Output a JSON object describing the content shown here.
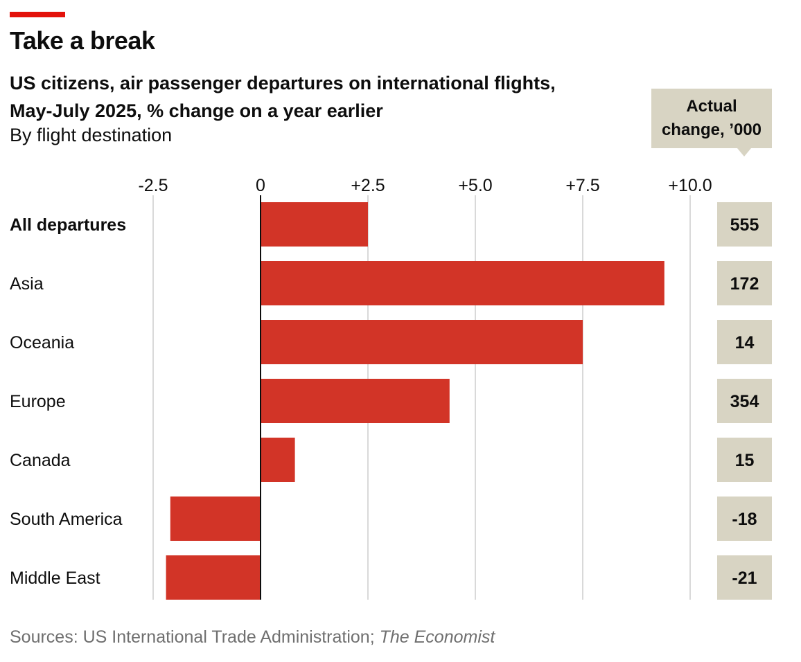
{
  "header": {
    "title": "Take a break",
    "subtitle_line1": "US citizens, air passenger departures on international flights,",
    "subtitle_line2": "May-July 2025, % change on a year earlier",
    "subtitle_note": "By flight destination"
  },
  "callout": {
    "line1": "Actual",
    "line2": "change, ’000"
  },
  "footer": {
    "source_prefix": "Sources: US International Trade Administration; ",
    "source_italic": "The Economist"
  },
  "colors": {
    "bar": "#d23427",
    "accent": "#e3120b",
    "panel": "#d8d4c3",
    "grid": "#d9d9d9"
  },
  "chart_data": {
    "type": "bar",
    "orientation": "horizontal",
    "xlabel": "% change on a year earlier",
    "xlim": [
      -2.5,
      10.0
    ],
    "xticks": [
      -2.5,
      0,
      2.5,
      5.0,
      7.5,
      10.0
    ],
    "xtick_labels": [
      "-2.5",
      "0",
      "+2.5",
      "+5.0",
      "+7.5",
      "+10.0"
    ],
    "categories": [
      "All departures",
      "Asia",
      "Oceania",
      "Europe",
      "Canada",
      "South America",
      "Middle East"
    ],
    "values": [
      2.5,
      9.4,
      7.5,
      4.4,
      0.8,
      -2.1,
      -2.2
    ],
    "actual_change_thousands": [
      "555",
      "172",
      "14",
      "354",
      "15",
      "-18",
      "-21"
    ],
    "bold_categories": [
      "All departures"
    ],
    "grid": true
  }
}
